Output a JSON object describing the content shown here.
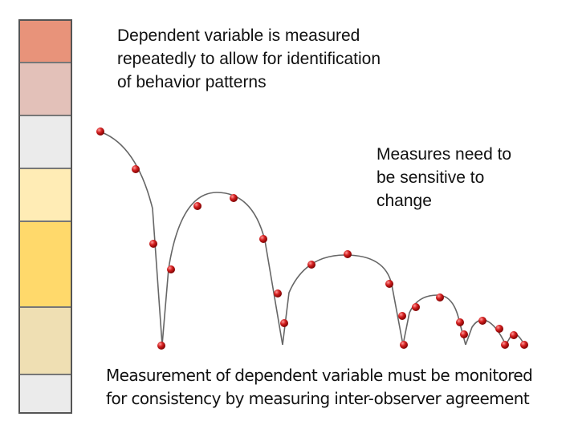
{
  "annotations": {
    "top": [
      "Dependent variable is measured",
      "repeatedly to allow for identification",
      "of behavior patterns"
    ],
    "right": [
      "Measures need to",
      "be sensitive to",
      "change"
    ],
    "bottom": [
      "Measurement of dependent variable must be monitored",
      "for consistency by measuring inter-observer agreement"
    ]
  },
  "color_bar": [
    {
      "color": "#e8937a",
      "weight": 52
    },
    {
      "color": "#e3c1b9",
      "weight": 66
    },
    {
      "color": "#ebebeb",
      "weight": 65
    },
    {
      "color": "#ffecb5",
      "weight": 66
    },
    {
      "color": "#ffd96b",
      "weight": 107
    },
    {
      "color": "#efdfb3",
      "weight": 84
    },
    {
      "color": "#ebebeb",
      "weight": 47
    }
  ],
  "colors": {
    "curve": "#666666",
    "ball": "#d42020",
    "ball_highlight": "#ff9a9a"
  }
}
